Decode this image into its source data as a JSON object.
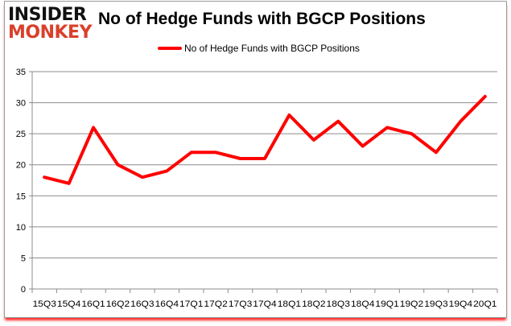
{
  "logo": {
    "line1": "INSIDER",
    "line2": "MONKEY"
  },
  "chart_data": {
    "type": "line",
    "title": "No of Hedge Funds with BGCP Positions",
    "xlabel": "",
    "ylabel": "",
    "categories": [
      "15Q3",
      "15Q4",
      "16Q1",
      "16Q2",
      "16Q3",
      "16Q4",
      "17Q1",
      "17Q2",
      "17Q3",
      "17Q4",
      "18Q1",
      "18Q2",
      "18Q3",
      "18Q4",
      "19Q1",
      "19Q2",
      "19Q3",
      "19Q4",
      "20Q1"
    ],
    "series": [
      {
        "name": "No of Hedge Funds with BGCP Positions",
        "color": "#ff0000",
        "values": [
          18,
          17,
          26,
          20,
          18,
          19,
          22,
          22,
          21,
          21,
          28,
          24,
          27,
          23,
          26,
          25,
          22,
          27,
          31
        ]
      }
    ],
    "ylim": [
      0,
      35
    ],
    "yticks": [
      0,
      5,
      10,
      15,
      20,
      25,
      30,
      35
    ],
    "grid": true,
    "legend_position": "top"
  }
}
